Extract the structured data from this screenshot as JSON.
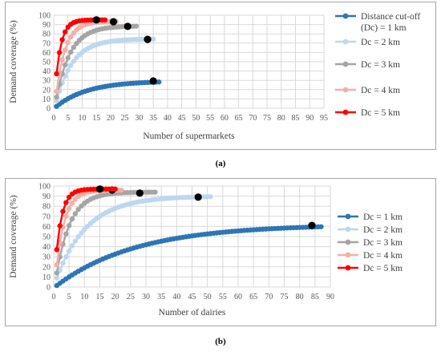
{
  "figure": {
    "label_a": "(a)",
    "label_b": "(b)"
  },
  "chart_data": [
    {
      "type": "line",
      "id": "a",
      "xlabel": "Number of supermarkets",
      "ylabel": "Demand coverage (%)",
      "xlim": [
        0,
        95
      ],
      "ylim": [
        0,
        100
      ],
      "xticks": [
        0,
        5,
        10,
        15,
        20,
        25,
        30,
        35,
        40,
        45,
        50,
        55,
        60,
        65,
        70,
        75,
        80,
        85,
        90,
        95
      ],
      "yticks": [
        0,
        10,
        20,
        30,
        40,
        50,
        60,
        70,
        80,
        90,
        100
      ],
      "legend_position": "right",
      "series": [
        {
          "name": "Distance cut-off (Dc) = 1 km",
          "legend_lines": [
            "Distance cut-off",
            "(Dc) = 1 km"
          ],
          "color": "#2e75b6",
          "n": 37,
          "start": 2,
          "end": 29.3,
          "curve": 0.09,
          "marker": [
            35,
            29.3
          ]
        },
        {
          "name": "Dc = 2 km",
          "legend_lines": [
            "Dc = 2 km"
          ],
          "color": "#bdd7ee",
          "n": 35,
          "start": 8,
          "end": 74.5,
          "curve": 0.17,
          "marker": [
            33,
            74
          ]
        },
        {
          "name": "Dc = 3 km",
          "legend_lines": [
            "Dc = 3 km"
          ],
          "color": "#a5a5a5",
          "n": 29,
          "start": 12,
          "end": 88.5,
          "curve": 0.2,
          "marker": [
            26,
            88
          ]
        },
        {
          "name": "Dc = 4 km",
          "legend_lines": [
            "Dc = 4 km"
          ],
          "color": "#f4b0a7",
          "n": 22,
          "start": 18,
          "end": 93.5,
          "curve": 0.3,
          "marker": [
            21,
            93
          ]
        },
        {
          "name": "Dc = 5 km",
          "legend_lines": [
            "Dc = 5 km"
          ],
          "color": "#ff0000",
          "n": 18,
          "start": 37,
          "end": 95,
          "curve": 0.5,
          "marker": [
            15,
            95
          ]
        }
      ]
    },
    {
      "type": "line",
      "id": "b",
      "xlabel": "Number of dairies",
      "ylabel": "Demand coverage (%)",
      "xlim": [
        0,
        90
      ],
      "ylim": [
        0,
        100
      ],
      "xticks": [
        0,
        5,
        10,
        15,
        20,
        25,
        30,
        35,
        40,
        45,
        50,
        55,
        60,
        65,
        70,
        75,
        80,
        85,
        90
      ],
      "yticks": [
        0,
        10,
        20,
        30,
        40,
        50,
        60,
        70,
        80,
        90,
        100
      ],
      "legend_position": "right",
      "series": [
        {
          "name": "Dc = 1 km",
          "legend_lines": [
            "Dc = 1 km"
          ],
          "color": "#2e75b6",
          "n": 87,
          "start": 1.5,
          "end": 62,
          "curve": 0.038,
          "marker": [
            84,
            61
          ]
        },
        {
          "name": "Dc = 2 km",
          "legend_lines": [
            "Dc = 2 km"
          ],
          "color": "#bdd7ee",
          "n": 51,
          "start": 9,
          "end": 90,
          "curve": 0.1,
          "marker": [
            47,
            89
          ]
        },
        {
          "name": "Dc = 3 km",
          "legend_lines": [
            "Dc = 3 km"
          ],
          "color": "#a5a5a5",
          "n": 33,
          "start": 14,
          "end": 94,
          "curve": 0.22,
          "marker": [
            28,
            93
          ]
        },
        {
          "name": "Dc = 4 km",
          "legend_lines": [
            "Dc = 4 km"
          ],
          "color": "#f4b0a7",
          "n": 22,
          "start": 22,
          "end": 96,
          "curve": 0.35,
          "marker": [
            19,
            96
          ]
        },
        {
          "name": "Dc = 5 km",
          "legend_lines": [
            "Dc = 5 km"
          ],
          "color": "#ff0000",
          "n": 20,
          "start": 37,
          "end": 97,
          "curve": 0.5,
          "marker": [
            15,
            97
          ]
        }
      ]
    }
  ]
}
